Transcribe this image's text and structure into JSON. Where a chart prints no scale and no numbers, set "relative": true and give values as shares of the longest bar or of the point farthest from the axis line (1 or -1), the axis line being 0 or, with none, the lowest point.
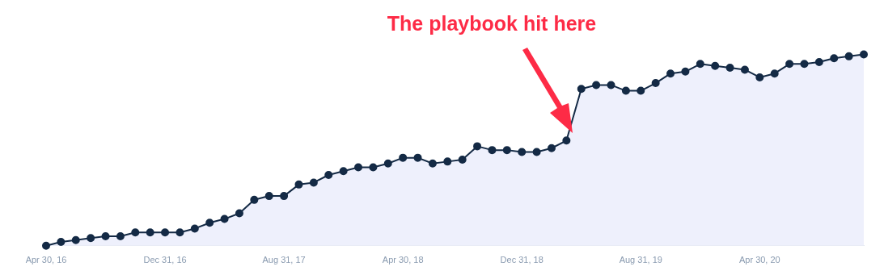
{
  "chart_data": {
    "type": "area",
    "relative": true,
    "categories": [
      "Apr 30, 16",
      null,
      null,
      null,
      null,
      null,
      null,
      null,
      "Dec 31, 16",
      null,
      null,
      null,
      null,
      null,
      null,
      null,
      "Aug 31, 17",
      null,
      null,
      null,
      null,
      null,
      null,
      null,
      "Apr 30, 18",
      null,
      null,
      null,
      null,
      null,
      null,
      null,
      "Dec 31, 18",
      null,
      null,
      null,
      null,
      null,
      null,
      null,
      "Aug 31, 19",
      null,
      null,
      null,
      null,
      null,
      null,
      null,
      "Apr 30, 20",
      null,
      null,
      null,
      null,
      null,
      null,
      null
    ],
    "series": [
      {
        "color": "#142a45",
        "values": [
          0,
          0.02,
          0.03,
          0.04,
          0.05,
          0.05,
          0.07,
          0.07,
          0.07,
          0.07,
          0.09,
          0.12,
          0.14,
          0.17,
          0.24,
          0.26,
          0.26,
          0.32,
          0.33,
          0.37,
          0.39,
          0.41,
          0.41,
          0.43,
          0.46,
          0.46,
          0.43,
          0.44,
          0.45,
          0.52,
          0.5,
          0.5,
          0.49,
          0.49,
          0.51,
          0.55,
          0.82,
          0.84,
          0.84,
          0.81,
          0.81,
          0.85,
          0.9,
          0.91,
          0.95,
          0.94,
          0.93,
          0.92,
          0.88,
          0.9,
          0.95,
          0.95,
          0.96,
          0.98,
          0.99,
          1
        ]
      }
    ],
    "marker": "circle",
    "legend": false,
    "annotations": [
      "The playbook hit here"
    ]
  }
}
